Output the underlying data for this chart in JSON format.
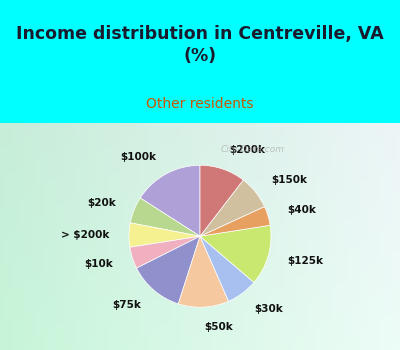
{
  "title": "Income distribution in Centreville, VA\n(%)",
  "subtitle": "Other residents",
  "title_color": "#1a1a2e",
  "subtitle_color": "#cc5500",
  "bg_top": "#00ffff",
  "bg_chart_top_left": "#c8f0e0",
  "bg_chart_bottom_right": "#e8f8f0",
  "watermark": "City-Data.com",
  "labels": [
    "$100k",
    "$20k",
    "> $200k",
    "$10k",
    "$75k",
    "$50k",
    "$30k",
    "$125k",
    "$40k",
    "$150k",
    "$200k"
  ],
  "values": [
    14.5,
    5.5,
    5.0,
    4.5,
    11.5,
    10.5,
    6.5,
    12.5,
    4.0,
    7.0,
    9.5
  ],
  "colors": [
    "#b0a0d8",
    "#b8d890",
    "#f5f090",
    "#f0b0c0",
    "#9090cc",
    "#f5c8a0",
    "#a8c0f0",
    "#c8e870",
    "#e8a060",
    "#d0c0a0",
    "#d07878"
  ],
  "startangle": 90,
  "label_fontsize": 7.5,
  "title_fontsize": 12.5,
  "subtitle_fontsize": 10
}
